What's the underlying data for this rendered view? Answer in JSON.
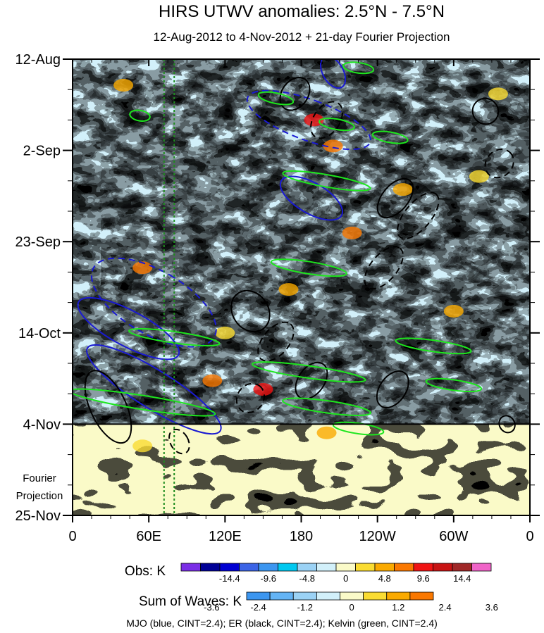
{
  "chart_data": {
    "type": "heatmap",
    "title": "HIRS UTWV anomalies: 2.5°N - 7.5°N",
    "subtitle": "12-Aug-2012 to 4-Nov-2012 + 21-day Fourier Projection",
    "x_ticks": [
      {
        "lon": 0,
        "label": "0"
      },
      {
        "lon": 60,
        "label": "60E"
      },
      {
        "lon": 120,
        "label": "120E"
      },
      {
        "lon": 180,
        "label": "180"
      },
      {
        "lon": 240,
        "label": "120W"
      },
      {
        "lon": 300,
        "label": "60W"
      },
      {
        "lon": 360,
        "label": "0"
      }
    ],
    "x_range": [
      0,
      360
    ],
    "y_ticks": [
      {
        "day": 0,
        "label": "12-Aug"
      },
      {
        "day": 21,
        "label": "2-Sep"
      },
      {
        "day": 42,
        "label": "23-Sep"
      },
      {
        "day": 63,
        "label": "14-Oct"
      },
      {
        "day": 84,
        "label": "4-Nov"
      },
      {
        "day": 105,
        "label": "25-Nov"
      }
    ],
    "y_range": [
      0,
      105
    ],
    "observation_end_day": 84,
    "projection_label_1": "Fourier",
    "projection_label_2": "Projection",
    "reference_lon_lines": [
      72,
      80
    ],
    "obs_legend": {
      "label": "Obs: K",
      "colors": [
        "#7a2ee6",
        "#000096",
        "#0000d2",
        "#3c64e6",
        "#3c96f0",
        "#00c8f0",
        "#9bd2f5",
        "#d2f0fa",
        "#fafac8",
        "#fadc32",
        "#faaa00",
        "#fa7800",
        "#f01414",
        "#c81414",
        "#a02828",
        "#f064c8"
      ],
      "tick_labels": [
        "-14.4",
        "-9.6",
        "-4.8",
        "0",
        "4.8",
        "9.6",
        "14.4"
      ]
    },
    "waves_legend": {
      "label": "Sum of Waves: K",
      "colors": [
        "#3c96f0",
        "#64b4f5",
        "#9bd2f5",
        "#d2f0fa",
        "#fafac8",
        "#fadc32",
        "#faaa00",
        "#fa7800"
      ],
      "tick_labels": [
        "-3.6",
        "-2.4",
        "-1.2",
        "0",
        "1.2",
        "2.4",
        "3.6"
      ]
    },
    "footer": "MJO (blue, CINT=2.4); ER (black, CINT=2.4); Kelvin (green, CINT=2.4)",
    "contours": {
      "mjo": [
        {
          "lon": 44,
          "day": 62,
          "rx": 14,
          "ry": 13,
          "angle": -62,
          "dashed": false
        },
        {
          "lon": 64,
          "day": 76,
          "rx": 15,
          "ry": 18,
          "angle": -58,
          "dashed": false
        },
        {
          "lon": 64,
          "day": 56,
          "rx": 25,
          "ry": 16,
          "angle": -60,
          "dashed": true
        },
        {
          "lon": 186,
          "day": 14,
          "rx": 16,
          "ry": 15,
          "angle": -70,
          "dashed": true
        },
        {
          "lon": 205,
          "day": 3,
          "rx": 8,
          "ry": 4,
          "angle": -30,
          "dashed": false
        },
        {
          "lon": 188,
          "day": 32,
          "rx": 12,
          "ry": 8,
          "angle": -60,
          "dashed": false
        }
      ],
      "er": [
        {
          "lon": 28,
          "day": 80,
          "rx": 14,
          "ry": 9,
          "angle": -25,
          "dashed": false
        },
        {
          "lon": 84,
          "day": 88,
          "rx": 7,
          "ry": 3,
          "angle": -30,
          "dashed": true
        },
        {
          "lon": 140,
          "day": 58,
          "rx": 14,
          "ry": 5,
          "angle": -35,
          "dashed": false
        },
        {
          "lon": 175,
          "day": 8,
          "rx": 14,
          "ry": 3,
          "angle": -55,
          "dashed": false
        },
        {
          "lon": 200,
          "day": 14,
          "rx": 16,
          "ry": 3,
          "angle": -55,
          "dashed": true
        },
        {
          "lon": 254,
          "day": 32,
          "rx": 18,
          "ry": 3,
          "angle": -50,
          "dashed": false
        },
        {
          "lon": 272,
          "day": 36,
          "rx": 22,
          "ry": 3,
          "angle": -50,
          "dashed": true
        },
        {
          "lon": 245,
          "day": 48,
          "rx": 20,
          "ry": 3,
          "angle": -50,
          "dashed": true
        },
        {
          "lon": 160,
          "day": 65,
          "rx": 18,
          "ry": 3,
          "angle": -50,
          "dashed": true
        },
        {
          "lon": 188,
          "day": 74,
          "rx": 16,
          "ry": 3,
          "angle": -55,
          "dashed": false
        },
        {
          "lon": 140,
          "day": 78,
          "rx": 12,
          "ry": 3,
          "angle": -55,
          "dashed": true
        },
        {
          "lon": 252,
          "day": 76,
          "rx": 16,
          "ry": 3,
          "angle": -55,
          "dashed": false
        },
        {
          "lon": 325,
          "day": 12,
          "rx": 10,
          "ry": 3,
          "angle": -45,
          "dashed": false
        },
        {
          "lon": 336,
          "day": 24,
          "rx": 12,
          "ry": 3,
          "angle": -45,
          "dashed": true
        },
        {
          "lon": 342,
          "day": 84,
          "rx": 6,
          "ry": 2,
          "angle": -30,
          "dashed": false
        }
      ],
      "kelvin": [
        {
          "lon": 53,
          "day": 13,
          "rx": 8,
          "ry": 1.2,
          "angle": 10,
          "dashed": false
        },
        {
          "lon": 160,
          "day": 9,
          "rx": 14,
          "ry": 1.2,
          "angle": 12,
          "dashed": false
        },
        {
          "lon": 225,
          "day": 2,
          "rx": 12,
          "ry": 1.2,
          "angle": 8,
          "dashed": false
        },
        {
          "lon": 208,
          "day": 15,
          "rx": 14,
          "ry": 1.2,
          "angle": 10,
          "dashed": false
        },
        {
          "lon": 250,
          "day": 18,
          "rx": 14,
          "ry": 1.2,
          "angle": 10,
          "dashed": false
        },
        {
          "lon": 200,
          "day": 28,
          "rx": 35,
          "ry": 1.4,
          "angle": 10,
          "dashed": false
        },
        {
          "lon": 186,
          "day": 48,
          "rx": 30,
          "ry": 1.4,
          "angle": 9,
          "dashed": false
        },
        {
          "lon": 80,
          "day": 64,
          "rx": 36,
          "ry": 1.3,
          "angle": 8,
          "dashed": false
        },
        {
          "lon": 284,
          "day": 66,
          "rx": 30,
          "ry": 1.3,
          "angle": 8,
          "dashed": false
        },
        {
          "lon": 55,
          "day": 79,
          "rx": 58,
          "ry": 1.6,
          "angle": 9,
          "dashed": false
        },
        {
          "lon": 186,
          "day": 72,
          "rx": 45,
          "ry": 1.4,
          "angle": 8,
          "dashed": false
        },
        {
          "lon": 200,
          "day": 80,
          "rx": 35,
          "ry": 1.4,
          "angle": 8,
          "dashed": false
        },
        {
          "lon": 300,
          "day": 75,
          "rx": 22,
          "ry": 1.2,
          "angle": 8,
          "dashed": false
        },
        {
          "lon": 225,
          "day": 85,
          "rx": 20,
          "ry": 1.2,
          "angle": 8,
          "dashed": false
        }
      ]
    }
  }
}
